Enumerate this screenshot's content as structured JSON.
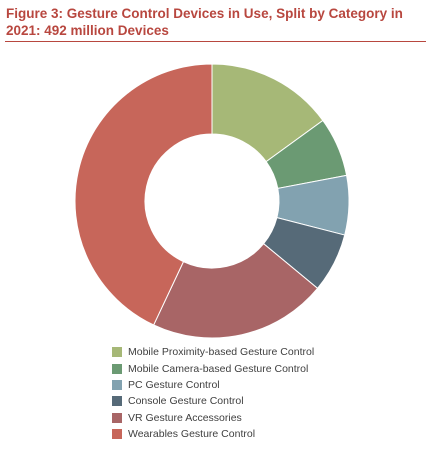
{
  "chart_data": {
    "type": "pie",
    "donut": true,
    "title": "Figure 3: Gesture Control Devices in Use, Split by Category in 2021: 492 million Devices",
    "categories": [
      "Mobile Proximity-based Gesture Control",
      "Mobile Camera-based Gesture Control",
      "PC Gesture Control",
      "Console Gesture Control",
      "VR Gesture Accessories",
      "Wearables Gesture Control"
    ],
    "values": [
      15.0,
      7.0,
      7.0,
      7.0,
      21.0,
      43.0
    ],
    "unit": "%",
    "colors": [
      "#a6b877",
      "#6b9a73",
      "#82a2b0",
      "#566a78",
      "#a86566",
      "#c7665a"
    ],
    "legend_position": "bottom"
  }
}
